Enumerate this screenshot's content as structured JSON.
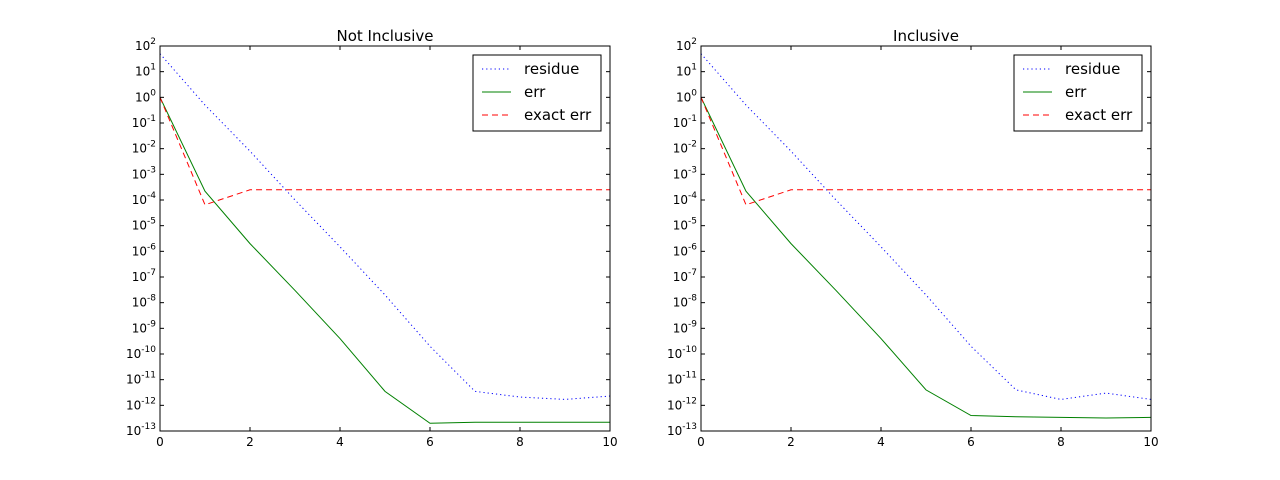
{
  "chart_data": [
    {
      "type": "line",
      "title": "Not Inclusive",
      "xlabel": "",
      "ylabel": "",
      "xlim": [
        0,
        10
      ],
      "ylim": [
        1e-13,
        100
      ],
      "y_scale": "log",
      "x_ticks": [
        "0",
        "2",
        "4",
        "6",
        "8",
        "10"
      ],
      "y_tick_exponents": [
        "2",
        "1",
        "0",
        "-1",
        "-2",
        "-3",
        "-4",
        "-5",
        "-6",
        "-7",
        "-8",
        "-9",
        "-10",
        "-11",
        "-12",
        "-13"
      ],
      "legend_position": "top-right",
      "series": [
        {
          "name": "residue",
          "style": "dotted",
          "color": "#0000ff",
          "x": [
            0,
            1,
            2,
            3,
            4,
            5,
            6,
            7,
            8,
            9,
            10
          ],
          "y": [
            50,
            0.5,
            0.008,
            0.0001,
            1.5e-06,
            2e-08,
            2e-10,
            3.5e-12,
            2.1e-12,
            1.7e-12,
            2.3e-12
          ]
        },
        {
          "name": "err",
          "style": "solid",
          "color": "#008000",
          "x": [
            0,
            1,
            2,
            3,
            4,
            5,
            6,
            7,
            8,
            9,
            10
          ],
          "y": [
            1,
            0.00022,
            2e-06,
            3e-08,
            4e-10,
            3.5e-12,
            2e-13,
            2.2e-13,
            2.2e-13,
            2.2e-13,
            2.2e-13
          ]
        },
        {
          "name": "exact err",
          "style": "dashed",
          "color": "#ff0000",
          "x": [
            0,
            1,
            2,
            3,
            4,
            5,
            6,
            7,
            8,
            9,
            10
          ],
          "y": [
            1,
            6.5e-05,
            0.00025,
            0.00025,
            0.00025,
            0.00025,
            0.00025,
            0.00025,
            0.00025,
            0.00025,
            0.00025
          ]
        }
      ]
    },
    {
      "type": "line",
      "title": "Inclusive",
      "xlabel": "",
      "ylabel": "",
      "xlim": [
        0,
        10
      ],
      "ylim": [
        1e-13,
        100
      ],
      "y_scale": "log",
      "x_ticks": [
        "0",
        "2",
        "4",
        "6",
        "8",
        "10"
      ],
      "y_tick_exponents": [
        "2",
        "1",
        "0",
        "-1",
        "-2",
        "-3",
        "-4",
        "-5",
        "-6",
        "-7",
        "-8",
        "-9",
        "-10",
        "-11",
        "-12",
        "-13"
      ],
      "legend_position": "top-right",
      "series": [
        {
          "name": "residue",
          "style": "dotted",
          "color": "#0000ff",
          "x": [
            0,
            1,
            2,
            3,
            4,
            5,
            6,
            7,
            8,
            9,
            10
          ],
          "y": [
            50,
            0.5,
            0.008,
            0.0001,
            1.5e-06,
            2e-08,
            2e-10,
            4e-12,
            1.7e-12,
            3e-12,
            1.7e-12
          ]
        },
        {
          "name": "err",
          "style": "solid",
          "color": "#008000",
          "x": [
            0,
            1,
            2,
            3,
            4,
            5,
            6,
            7,
            8,
            9,
            10
          ],
          "y": [
            1,
            0.00022,
            2e-06,
            3e-08,
            4e-10,
            4e-12,
            4e-13,
            3.6e-13,
            3.4e-13,
            3.2e-13,
            3.4e-13
          ]
        },
        {
          "name": "exact err",
          "style": "dashed",
          "color": "#ff0000",
          "x": [
            0,
            1,
            2,
            3,
            4,
            5,
            6,
            7,
            8,
            9,
            10
          ],
          "y": [
            1,
            6.5e-05,
            0.00025,
            0.00025,
            0.00025,
            0.00025,
            0.00025,
            0.00025,
            0.00025,
            0.00025,
            0.00025
          ]
        }
      ]
    }
  ]
}
